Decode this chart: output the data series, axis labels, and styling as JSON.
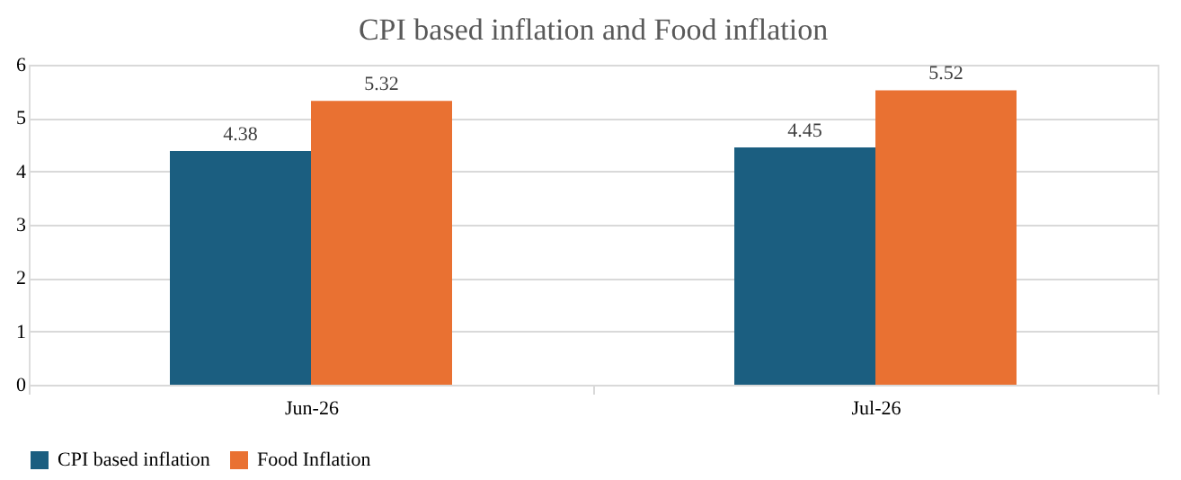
{
  "chart_data": {
    "type": "bar",
    "title": "CPI based inflation and Food inflation",
    "categories": [
      "Jun-26",
      "Jul-26"
    ],
    "series": [
      {
        "name": "CPI based inflation",
        "color": "#1b5e80",
        "values": [
          4.38,
          4.45
        ]
      },
      {
        "name": "Food Inflation",
        "color": "#e97132",
        "values": [
          5.32,
          5.52
        ]
      }
    ],
    "ylim": [
      0,
      6
    ],
    "yticks": [
      0,
      1,
      2,
      3,
      4,
      5,
      6
    ],
    "grid": "y",
    "legend": "bottom",
    "data_labels": true
  }
}
